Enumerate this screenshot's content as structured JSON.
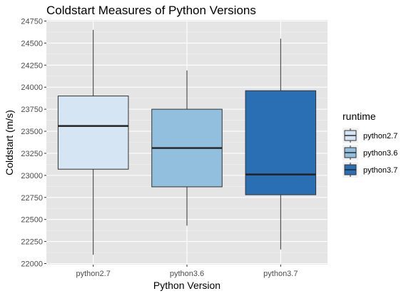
{
  "chart_data": {
    "type": "box",
    "title": "Coldstart Measures of Python Versions",
    "xlabel": "Python Version",
    "ylabel": "Coldstart (m/s)",
    "ylim": [
      22000,
      24750
    ],
    "yticks": [
      22000,
      22250,
      22500,
      22750,
      23000,
      23250,
      23500,
      23750,
      24000,
      24250,
      24500,
      24750
    ],
    "categories": [
      "python2.7",
      "python3.6",
      "python3.7"
    ],
    "series": [
      {
        "name": "python2.7",
        "min": 22100,
        "q1": 23070,
        "median": 23560,
        "q3": 23900,
        "max": 24650,
        "color": "#d6e5f4"
      },
      {
        "name": "python3.6",
        "min": 22430,
        "q1": 22870,
        "median": 23310,
        "q3": 23750,
        "max": 24190,
        "color": "#91bfdd"
      },
      {
        "name": "python3.7",
        "min": 22160,
        "q1": 22780,
        "median": 23010,
        "q3": 23960,
        "max": 24550,
        "color": "#2a6fb4"
      }
    ],
    "legend": {
      "title": "runtime",
      "position": "right"
    },
    "grid": true,
    "panel_color": "#e5e5e5"
  }
}
